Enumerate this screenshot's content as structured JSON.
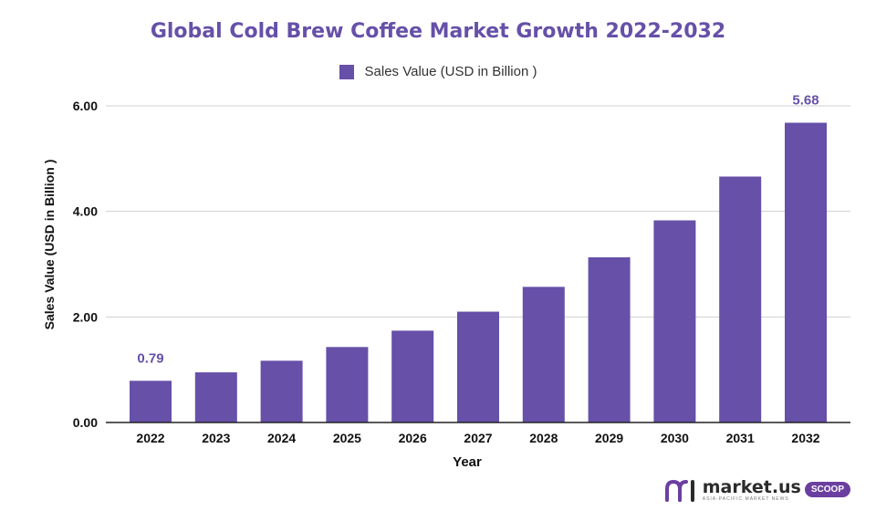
{
  "colors": {
    "bar": "#6650a8",
    "title": "#6650a8",
    "grid": "#cfcfcf",
    "axis": "#222222",
    "logo_accent": "#6b3fa0"
  },
  "chart_data": {
    "type": "bar",
    "title": "Global Cold Brew Coffee Market Growth 2022-2032",
    "xlabel": "Year",
    "ylabel": "Sales Value (USD in Billion )",
    "categories": [
      "2022",
      "2023",
      "2024",
      "2025",
      "2026",
      "2027",
      "2028",
      "2029",
      "2030",
      "2031",
      "2032"
    ],
    "series": [
      {
        "name": "Sales Value (USD in Billion )",
        "values": [
          0.79,
          0.95,
          1.17,
          1.43,
          1.74,
          2.1,
          2.57,
          3.13,
          3.83,
          4.66,
          5.68
        ]
      }
    ],
    "data_labels": [
      {
        "index": 0,
        "text": "0.79"
      },
      {
        "index": 10,
        "text": "5.68"
      }
    ],
    "ylim": [
      0,
      6
    ],
    "yticks": [
      "0.00",
      "2.00",
      "4.00",
      "6.00"
    ],
    "grid": true,
    "legend": "top-center"
  },
  "branding": {
    "logo_text": "market.us",
    "logo_badge": "SCOOP",
    "logo_sub": "ASIA-PACIFIC MARKET NEWS",
    "logo_icon": "market-us-logo-icon"
  }
}
